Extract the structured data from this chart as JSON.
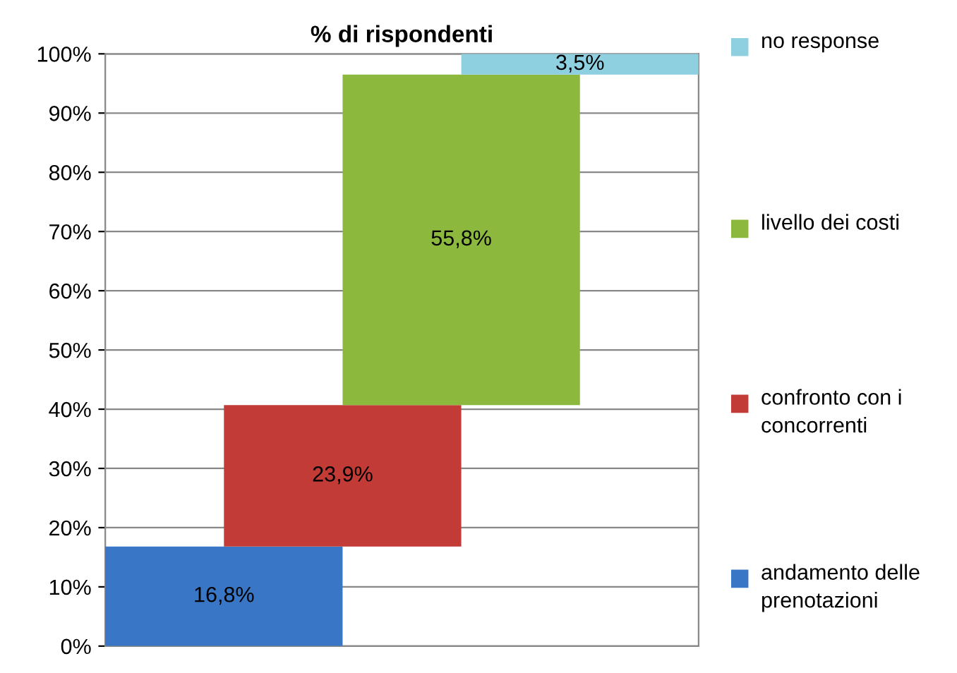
{
  "chart_data": {
    "type": "bar",
    "title": "% di rispondenti",
    "categories": [
      null,
      null,
      null,
      null
    ],
    "series": [
      {
        "name": "andamento delle prenotazioni",
        "color": "#3a76c6",
        "values": [
          16.8,
          null,
          null,
          null
        ],
        "base": [
          0,
          null,
          null,
          null
        ],
        "value_labels": [
          "16,8%",
          null,
          null,
          null
        ]
      },
      {
        "name": "confronto con i concorrenti",
        "color": "#c23b36",
        "values": [
          null,
          23.9,
          null,
          null
        ],
        "base": [
          null,
          16.8,
          null,
          null
        ],
        "value_labels": [
          null,
          "23,9%",
          null,
          null
        ]
      },
      {
        "name": "livello dei costi",
        "color": "#8cb83e",
        "values": [
          null,
          null,
          55.8,
          null
        ],
        "base": [
          null,
          null,
          40.7,
          null
        ],
        "value_labels": [
          null,
          null,
          "55,8%",
          null
        ]
      },
      {
        "name": "no response",
        "color": "#8ecfe0",
        "values": [
          null,
          null,
          null,
          3.5
        ],
        "base": [
          null,
          null,
          null,
          96.5
        ],
        "value_labels": [
          null,
          null,
          null,
          "3,5%"
        ]
      }
    ],
    "ylim": [
      0,
      100
    ],
    "yticks": [
      {
        "value": 0,
        "label": "0%"
      },
      {
        "value": 10,
        "label": "10%"
      },
      {
        "value": 20,
        "label": "20%"
      },
      {
        "value": 30,
        "label": "30%"
      },
      {
        "value": 40,
        "label": "40%"
      },
      {
        "value": 50,
        "label": "50%"
      },
      {
        "value": 60,
        "label": "60%"
      },
      {
        "value": 70,
        "label": "70%"
      },
      {
        "value": 80,
        "label": "80%"
      },
      {
        "value": 90,
        "label": "90%"
      },
      {
        "value": 100,
        "label": "100%"
      }
    ],
    "grid": "y",
    "legend": "right"
  }
}
